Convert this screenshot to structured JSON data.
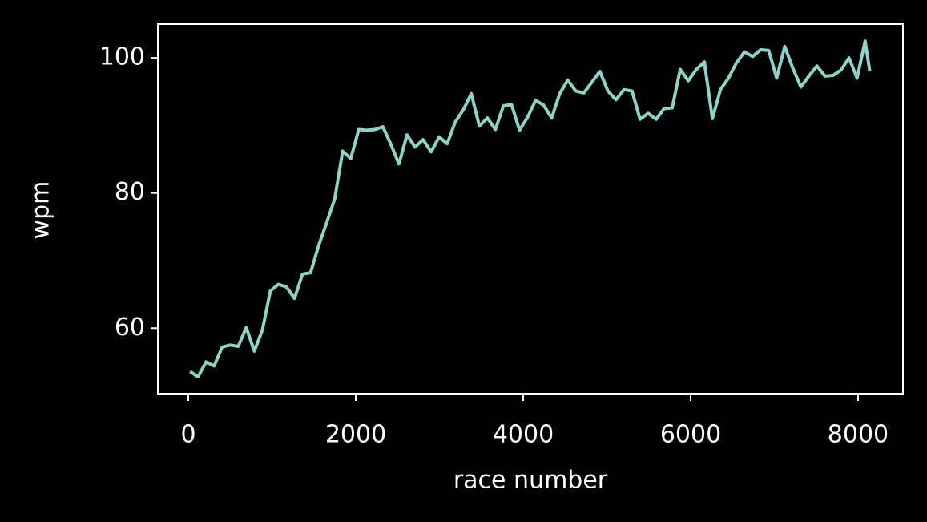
{
  "chart_data": {
    "type": "line",
    "x_label": "race number",
    "y_label": "wpm",
    "x": [
      20,
      116,
      212,
      308,
      404,
      500,
      596,
      692,
      788,
      884,
      980,
      1076,
      1172,
      1268,
      1364,
      1460,
      1556,
      1652,
      1748,
      1844,
      1940,
      2036,
      2132,
      2228,
      2324,
      2420,
      2516,
      2612,
      2708,
      2804,
      2900,
      2996,
      3092,
      3188,
      3284,
      3380,
      3476,
      3572,
      3668,
      3764,
      3860,
      3956,
      4052,
      4148,
      4244,
      4340,
      4436,
      4532,
      4628,
      4724,
      4820,
      4916,
      5012,
      5108,
      5204,
      5300,
      5396,
      5492,
      5588,
      5684,
      5780,
      5876,
      5972,
      6068,
      6164,
      6260,
      6356,
      6452,
      6548,
      6644,
      6740,
      6836,
      6932,
      7028,
      7124,
      7220,
      7316,
      7412,
      7508,
      7604,
      7700,
      7796,
      7892,
      7988,
      8084,
      8140
    ],
    "values": [
      53.6,
      52.8,
      55.0,
      54.4,
      57.2,
      57.5,
      57.3,
      60.1,
      56.6,
      59.7,
      65.5,
      66.5,
      66.1,
      64.4,
      68.0,
      68.2,
      72.2,
      75.6,
      79.1,
      86.2,
      85.1,
      89.4,
      89.3,
      89.4,
      89.8,
      87.2,
      84.3,
      88.6,
      86.8,
      87.9,
      86.1,
      88.3,
      87.3,
      90.5,
      92.3,
      94.7,
      89.9,
      91.1,
      89.4,
      92.9,
      93.1,
      89.3,
      91.2,
      93.7,
      93.0,
      91.1,
      94.7,
      96.7,
      95.1,
      94.8,
      96.4,
      98.0,
      95.1,
      93.8,
      95.3,
      95.1,
      90.9,
      91.8,
      90.9,
      92.5,
      92.6,
      98.3,
      96.6,
      98.3,
      99.4,
      91.0,
      95.3,
      97.0,
      99.3,
      100.9,
      100.2,
      101.2,
      101.1,
      97.0,
      101.7,
      98.5,
      95.7,
      97.3,
      98.8,
      97.3,
      97.4,
      98.2,
      100.0,
      97.0,
      102.5,
      98.0
    ],
    "color": "#8dd3c7",
    "xlim": [
      -364,
      8536
    ],
    "ylim": [
      50.3,
      105.0
    ],
    "xticks": [
      0,
      2000,
      4000,
      6000,
      8000
    ],
    "yticks": [
      60,
      80,
      100
    ]
  }
}
